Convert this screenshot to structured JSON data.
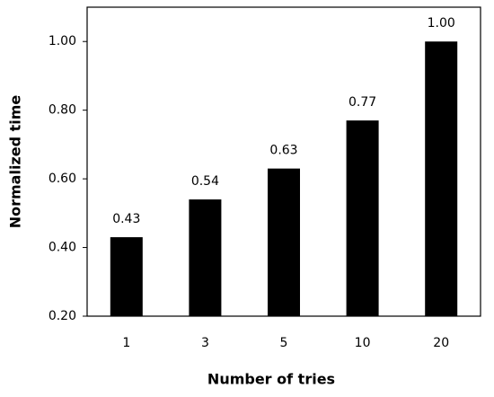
{
  "chart_data": {
    "type": "bar",
    "x_label": "Number of tries",
    "y_label": "Normalized time",
    "categories": [
      "1",
      "3",
      "5",
      "10",
      "20"
    ],
    "values": [
      0.43,
      0.54,
      0.63,
      0.77,
      1.0
    ],
    "value_labels": [
      "0.43",
      "0.54",
      "0.63",
      "0.77",
      "1.00"
    ],
    "color": "#000000",
    "ylim": [
      0.2,
      1.1
    ],
    "yticks": [
      {
        "value": 0.2,
        "label": "0.20"
      },
      {
        "value": 0.4,
        "label": "0.40"
      },
      {
        "value": 0.6,
        "label": "0.60"
      },
      {
        "value": 0.8,
        "label": "0.80"
      },
      {
        "value": 1.0,
        "label": "1.00"
      }
    ],
    "grid": false
  }
}
